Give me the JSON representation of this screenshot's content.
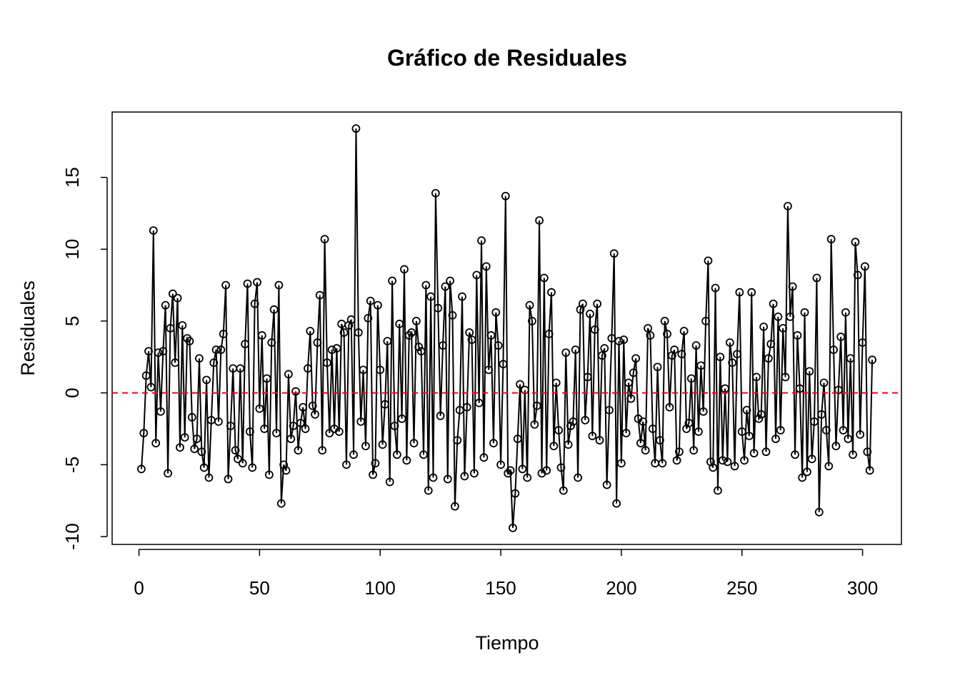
{
  "chart_data": {
    "type": "line",
    "title": "Gráfico de Residuales",
    "x_label": "Tiempo",
    "y_label": "Residuales",
    "x": [
      1,
      2,
      3,
      4,
      5,
      6,
      7,
      8,
      9,
      10,
      11,
      12,
      13,
      14,
      15,
      16,
      17,
      18,
      19,
      20,
      21,
      22,
      23,
      24,
      25,
      26,
      27,
      28,
      29,
      30,
      31,
      32,
      33,
      34,
      35,
      36,
      37,
      38,
      39,
      40,
      41,
      42,
      43,
      44,
      45,
      46,
      47,
      48,
      49,
      50,
      51,
      52,
      53,
      54,
      55,
      56,
      57,
      58,
      59,
      60,
      61,
      62,
      63,
      64,
      65,
      66,
      67,
      68,
      69,
      70,
      71,
      72,
      73,
      74,
      75,
      76,
      77,
      78,
      79,
      80,
      81,
      82,
      83,
      84,
      85,
      86,
      87,
      88,
      89,
      90,
      91,
      92,
      93,
      94,
      95,
      96,
      97,
      98,
      99,
      100,
      101,
      102,
      103,
      104,
      105,
      106,
      107,
      108,
      109,
      110,
      111,
      112,
      113,
      114,
      115,
      116,
      117,
      118,
      119,
      120,
      121,
      122,
      123,
      124,
      125,
      126,
      127,
      128,
      129,
      130,
      131,
      132,
      133,
      134,
      135,
      136,
      137,
      138,
      139,
      140,
      141,
      142,
      143,
      144,
      145,
      146,
      147,
      148,
      149,
      150,
      151,
      152,
      153,
      154,
      155,
      156,
      157,
      158,
      159,
      160,
      161,
      162,
      163,
      164,
      165,
      166,
      167,
      168,
      169,
      170,
      171,
      172,
      173,
      174,
      175,
      176,
      177,
      178,
      179,
      180,
      181,
      182,
      183,
      184,
      185,
      186,
      187,
      188,
      189,
      190,
      191,
      192,
      193,
      194,
      195,
      196,
      197,
      198,
      199,
      200,
      201,
      202,
      203,
      204,
      205,
      206,
      207,
      208,
      209,
      210,
      211,
      212,
      213,
      214,
      215,
      216,
      217,
      218,
      219,
      220,
      221,
      222,
      223,
      224,
      225,
      226,
      227,
      228,
      229,
      230,
      231,
      232,
      233,
      234,
      235,
      236,
      237,
      238,
      239,
      240,
      241,
      242,
      243,
      244,
      245,
      246,
      247,
      248,
      249,
      250,
      251,
      252,
      253,
      254,
      255,
      256,
      257,
      258,
      259,
      260,
      261,
      262,
      263,
      264,
      265,
      266,
      267,
      268,
      269,
      270,
      271,
      272,
      273,
      274,
      275,
      276,
      277,
      278,
      279,
      280,
      281,
      282,
      283,
      284,
      285,
      286,
      287,
      288,
      289,
      290,
      291,
      292,
      293,
      294,
      295,
      296,
      297,
      298,
      299,
      300,
      301,
      302,
      303,
      304
    ],
    "values": [
      -5.3,
      -2.8,
      1.2,
      2.9,
      0.4,
      11.3,
      -3.5,
      2.8,
      -1.3,
      2.9,
      6.1,
      -5.6,
      4.5,
      6.9,
      2.1,
      6.6,
      -3.8,
      4.7,
      -3.1,
      3.8,
      3.6,
      -1.7,
      -3.9,
      -3.2,
      2.4,
      -4.1,
      -5.2,
      0.9,
      -5.9,
      -1.9,
      2.1,
      3.0,
      -2.0,
      3.0,
      4.1,
      7.5,
      -6.0,
      -2.3,
      1.7,
      -4.0,
      -4.6,
      1.7,
      -4.9,
      3.4,
      7.6,
      -2.7,
      -5.2,
      6.2,
      7.7,
      -1.1,
      4.0,
      -2.5,
      1.0,
      -5.7,
      3.5,
      5.8,
      -2.8,
      7.5,
      -7.7,
      -5.0,
      -5.4,
      1.3,
      -3.2,
      -2.3,
      0.1,
      -4.0,
      -2.1,
      -1.0,
      -2.5,
      1.7,
      4.3,
      -0.9,
      -1.5,
      3.5,
      6.8,
      -4.0,
      10.7,
      2.1,
      -2.8,
      3.0,
      -2.5,
      3.1,
      -2.7,
      4.8,
      4.2,
      -5.0,
      4.7,
      5.1,
      -4.3,
      18.4,
      4.2,
      -2.0,
      1.6,
      -3.7,
      5.2,
      6.4,
      -5.7,
      -4.9,
      6.1,
      1.6,
      -3.6,
      -0.8,
      3.6,
      -6.2,
      7.8,
      -2.3,
      -4.3,
      4.8,
      -1.8,
      8.6,
      -4.7,
      4.0,
      4.2,
      -3.5,
      5.0,
      3.2,
      2.9,
      -4.3,
      7.5,
      -6.8,
      6.7,
      -5.9,
      13.9,
      5.9,
      -1.6,
      3.3,
      7.4,
      -6.0,
      7.8,
      5.4,
      -7.9,
      -3.3,
      -1.2,
      6.7,
      -5.8,
      -1.0,
      4.2,
      3.7,
      -5.6,
      8.2,
      -0.7,
      10.6,
      -4.5,
      8.8,
      1.6,
      4.0,
      -3.5,
      5.6,
      3.3,
      -5.0,
      2.0,
      13.7,
      -5.6,
      -5.4,
      -9.4,
      -7.0,
      -3.2,
      0.6,
      -5.3,
      0.2,
      -5.9,
      6.1,
      5.0,
      -2.2,
      -0.9,
      12.0,
      -5.6,
      8.0,
      -5.4,
      4.1,
      7.0,
      -3.7,
      0.7,
      -2.6,
      -5.2,
      -6.8,
      2.8,
      -3.6,
      -2.3,
      -2.0,
      3.0,
      -5.9,
      5.8,
      6.2,
      -1.9,
      1.1,
      5.5,
      -3.0,
      4.4,
      6.2,
      -3.3,
      2.6,
      3.1,
      -6.4,
      -1.2,
      3.8,
      9.7,
      -7.7,
      3.6,
      -4.9,
      3.7,
      -2.8,
      0.7,
      -0.4,
      1.4,
      2.4,
      -1.8,
      -3.5,
      -2.0,
      -4.0,
      4.5,
      4.0,
      -2.5,
      -4.9,
      1.8,
      -3.3,
      -4.9,
      5.0,
      4.1,
      -1.0,
      2.6,
      3.0,
      -4.7,
      -4.1,
      2.7,
      4.3,
      -2.5,
      -2.1,
      1.0,
      -4.0,
      3.3,
      -2.7,
      1.9,
      -1.3,
      5.0,
      9.2,
      -4.8,
      -5.2,
      7.3,
      -6.8,
      2.5,
      -4.7,
      0.3,
      -4.8,
      3.5,
      2.1,
      -5.1,
      2.7,
      7.0,
      -2.7,
      -4.7,
      -1.2,
      -3.0,
      7.0,
      -4.2,
      1.1,
      -1.8,
      -1.5,
      4.6,
      -4.1,
      2.4,
      3.4,
      6.2,
      -3.2,
      5.3,
      -2.6,
      4.5,
      1.1,
      13.0,
      5.3,
      7.4,
      -4.3,
      4.0,
      0.3,
      -5.9,
      5.6,
      -5.5,
      1.5,
      -4.6,
      -2.0,
      8.0,
      -8.3,
      -1.5,
      0.7,
      -2.6,
      -5.1,
      10.7,
      3.0,
      -3.7,
      0.2,
      3.9,
      -2.6,
      5.6,
      -3.2,
      2.4,
      -4.3,
      10.5,
      8.2,
      -2.9,
      3.5,
      8.8,
      -4.1,
      -5.4,
      2.3
    ],
    "color": "#000000",
    "xlim": [
      -11.12,
      316.12
    ],
    "ylim": [
      -10.55,
      19.55
    ],
    "xticks": [
      0,
      50,
      100,
      150,
      200,
      250,
      300
    ],
    "yticks": [
      -10,
      -5,
      0,
      5,
      10,
      15
    ],
    "hline": {
      "value": 0,
      "color": "#ff0000"
    }
  }
}
